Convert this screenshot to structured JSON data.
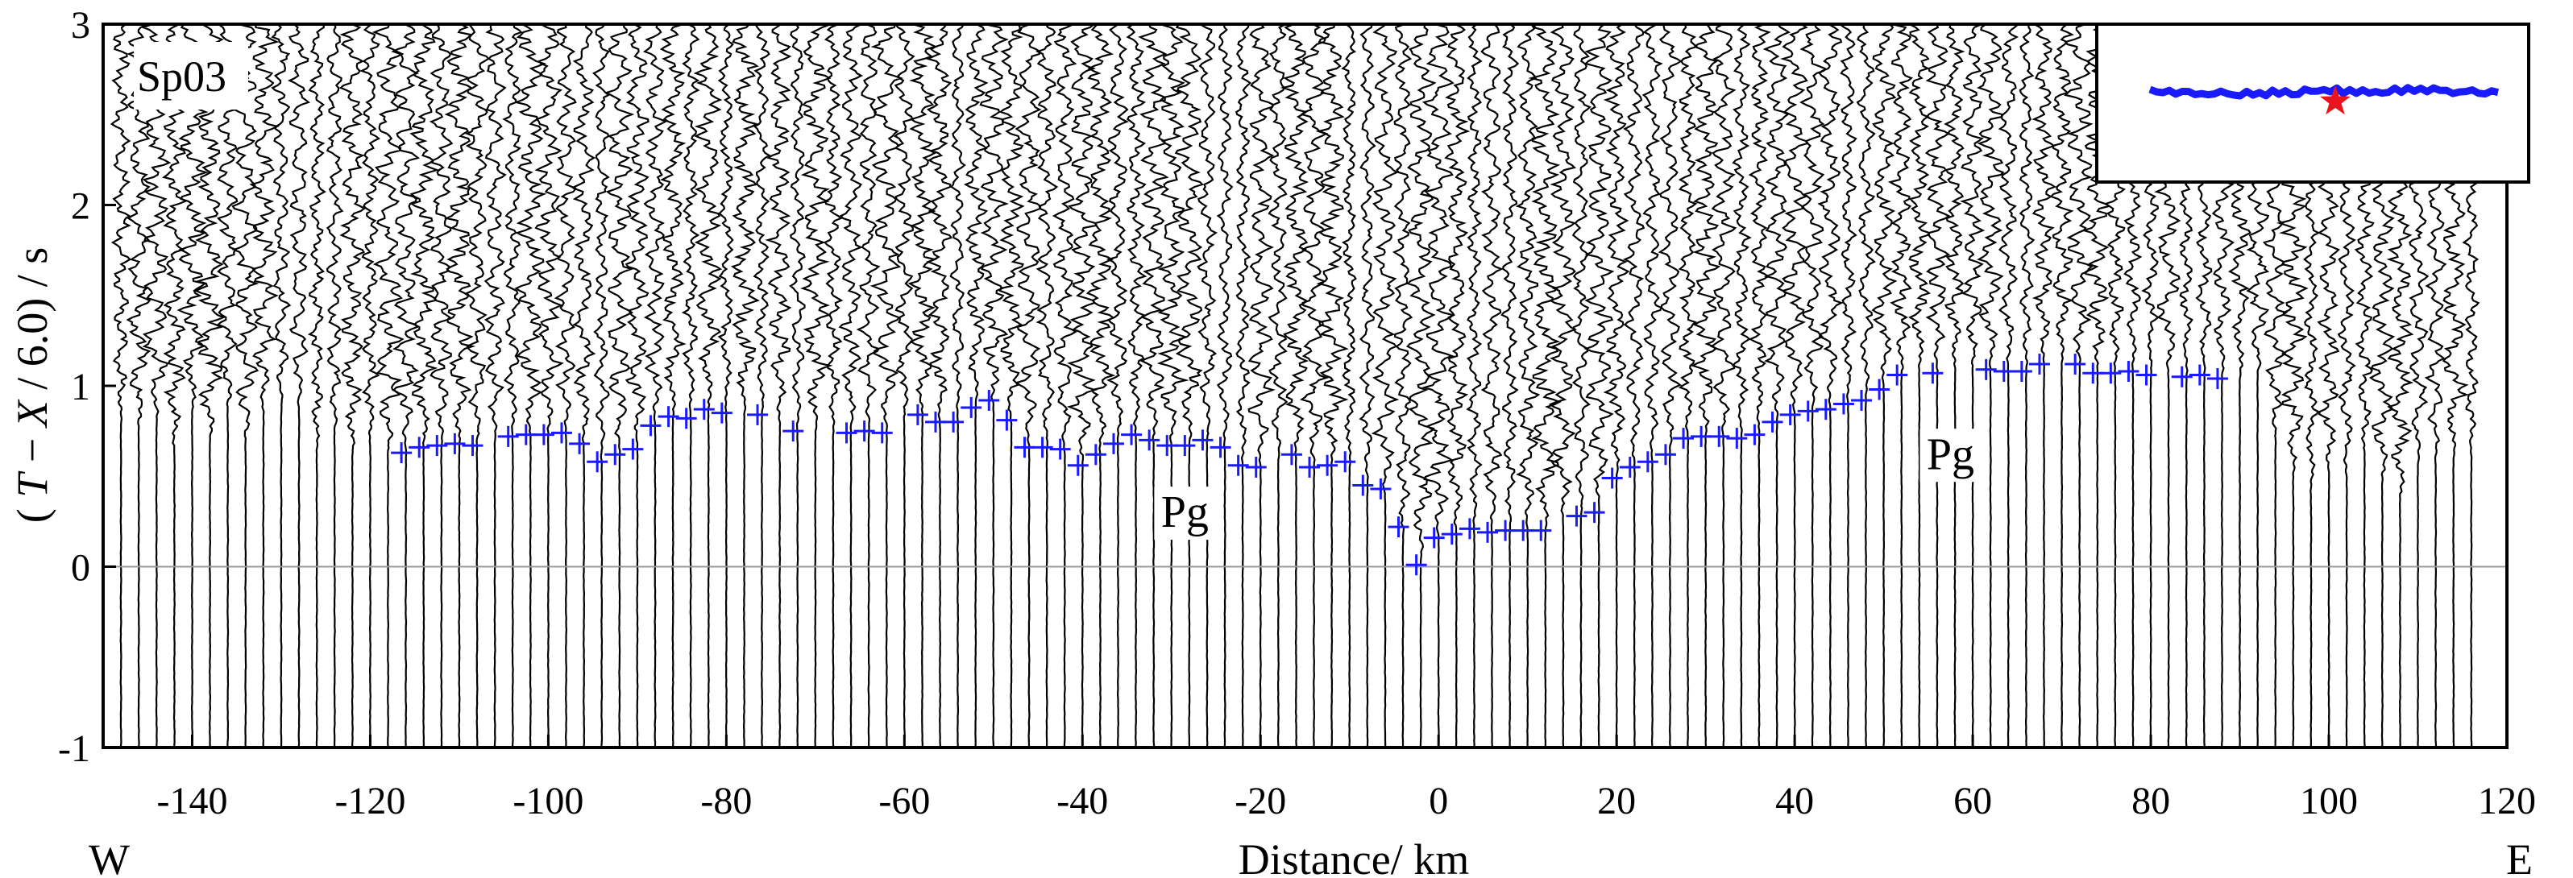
{
  "chart_data": {
    "type": "scatter",
    "title": "",
    "panel_label": "Sp03",
    "xlabel": "Distance/ km",
    "ylabel_parts": [
      "( ",
      "T",
      " − ",
      "X",
      " / 6.0) / s"
    ],
    "direction_labels": {
      "west": "W",
      "east": "E"
    },
    "xlim": [
      -150,
      120
    ],
    "ylim": [
      -1,
      3
    ],
    "x_ticks": [
      -140,
      -120,
      -100,
      -80,
      -60,
      -40,
      -20,
      0,
      20,
      40,
      60,
      80,
      100,
      120
    ],
    "y_ticks": [
      -1,
      0,
      1,
      2,
      3
    ],
    "reference_line_y": 0,
    "annotations": [
      {
        "text": "Pg",
        "x": -28.5,
        "y": 0.22
      },
      {
        "text": "Pg",
        "x": 57.5,
        "y": 0.54
      }
    ],
    "traces": {
      "x_min": -148,
      "x_max": 116,
      "spacing_km": 2.0,
      "color": "#000000"
    },
    "series": [
      {
        "color": "#1a1aff",
        "x": [
          -116.5,
          -114.5,
          -112.5,
          -110.5,
          -108.5,
          -104.5,
          -102.5,
          -100.5,
          -98.5,
          -96.5,
          -94.5,
          -92.5,
          -90.5,
          -88.5,
          -86.5,
          -84.5,
          -82.5,
          -80.5,
          -76.5,
          -72.5,
          -66.5,
          -64.5,
          -62.5,
          -58.5,
          -56.5,
          -54.5,
          -52.5,
          -50.5,
          -48.5,
          -46.5,
          -44.5,
          -42.5,
          -40.5,
          -38.5,
          -36.5,
          -34.5,
          -32.5,
          -30.5,
          -28.5,
          -26.5,
          -24.5,
          -22.5,
          -20.5,
          -16.5,
          -14.5,
          -12.5,
          -10.5,
          -8.5,
          -6.5,
          -4.5,
          -2.5,
          -0.5,
          1.5,
          3.5,
          5.5,
          7.5,
          9.5,
          11.5,
          15.5,
          17.5,
          19.5,
          21.5,
          23.5,
          25.5,
          27.5,
          29.5,
          31.5,
          33.5,
          35.5,
          37.5,
          39.5,
          41.5,
          43.5,
          45.5,
          47.5,
          49.5,
          51.5,
          55.5,
          61.5,
          63.5,
          65.5,
          67.5,
          71.5,
          73.5,
          75.5,
          77.5,
          79.5,
          83.5,
          85.5,
          87.5
        ],
        "y": [
          0.63,
          0.66,
          0.67,
          0.68,
          0.67,
          0.72,
          0.73,
          0.73,
          0.74,
          0.68,
          0.58,
          0.62,
          0.65,
          0.78,
          0.83,
          0.82,
          0.87,
          0.85,
          0.84,
          0.75,
          0.74,
          0.75,
          0.74,
          0.84,
          0.8,
          0.8,
          0.88,
          0.92,
          0.81,
          0.66,
          0.66,
          0.65,
          0.56,
          0.62,
          0.68,
          0.73,
          0.7,
          0.67,
          0.67,
          0.7,
          0.66,
          0.56,
          0.55,
          0.62,
          0.55,
          0.56,
          0.58,
          0.45,
          0.43,
          0.22,
          0.01,
          0.16,
          0.18,
          0.21,
          0.19,
          0.2,
          0.2,
          0.2,
          0.28,
          0.3,
          0.49,
          0.55,
          0.58,
          0.62,
          0.71,
          0.72,
          0.72,
          0.71,
          0.73,
          0.8,
          0.84,
          0.86,
          0.87,
          0.9,
          0.92,
          0.98,
          1.06,
          1.07,
          1.09,
          1.08,
          1.08,
          1.12,
          1.12,
          1.07,
          1.07,
          1.08,
          1.06,
          1.05,
          1.06,
          1.04
        ]
      }
    ],
    "inset": {
      "description_key": "location-map",
      "line_color": "#1a1aff",
      "star_color": "#e8141e"
    }
  }
}
